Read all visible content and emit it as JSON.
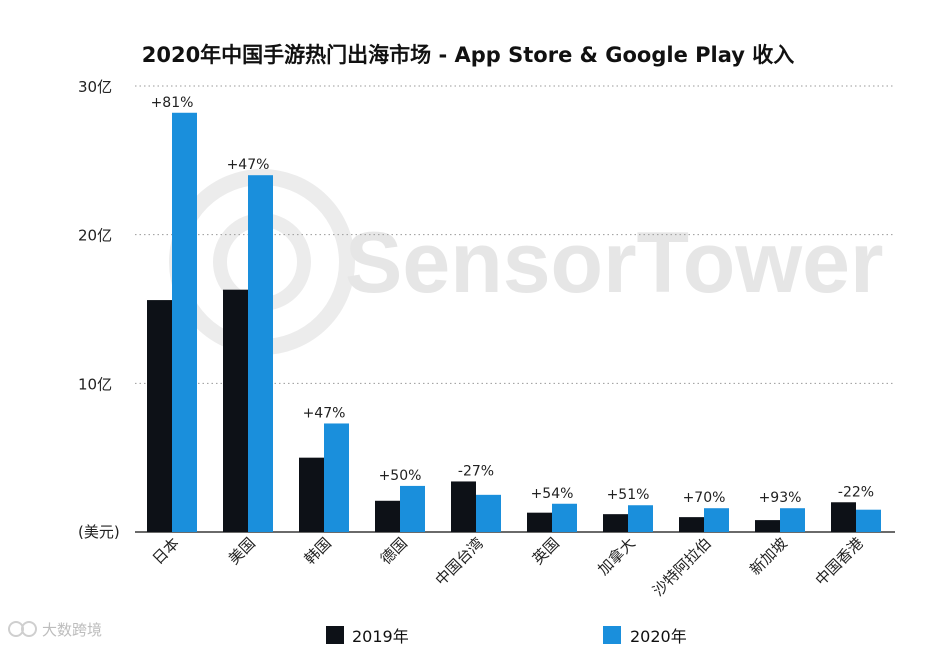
{
  "chart_data": {
    "type": "bar",
    "title": "2020年中国手游热门出海市场 - App Store & Google Play 收入",
    "ylabel": "(美元)",
    "y_ticks": [
      "30亿",
      "20亿",
      "10亿"
    ],
    "y_tick_values": [
      30,
      20,
      10
    ],
    "ylim": [
      0,
      30
    ],
    "unit": "亿美元",
    "grid": true,
    "categories": [
      "日本",
      "美国",
      "韩国",
      "德国",
      "中国台湾",
      "英国",
      "加拿大",
      "沙特阿拉伯",
      "新加坡",
      "中国香港"
    ],
    "series": [
      {
        "name": "2019年",
        "color": "#0d1117",
        "values": [
          15.6,
          16.3,
          5.0,
          2.1,
          3.4,
          1.3,
          1.2,
          1.0,
          0.8,
          2.0
        ]
      },
      {
        "name": "2020年",
        "color": "#1a8fdc",
        "values": [
          28.2,
          24.0,
          7.3,
          3.1,
          2.5,
          1.9,
          1.8,
          1.6,
          1.6,
          1.5
        ]
      }
    ],
    "growth_labels": [
      "+81%",
      "+47%",
      "+47%",
      "+50%",
      "-27%",
      "+54%",
      "+51%",
      "+70%",
      "+93%",
      "-22%"
    ],
    "legend_position": "bottom"
  },
  "watermark": {
    "text": "SensorTower"
  },
  "corner_logo": {
    "text": "大数跨境"
  }
}
